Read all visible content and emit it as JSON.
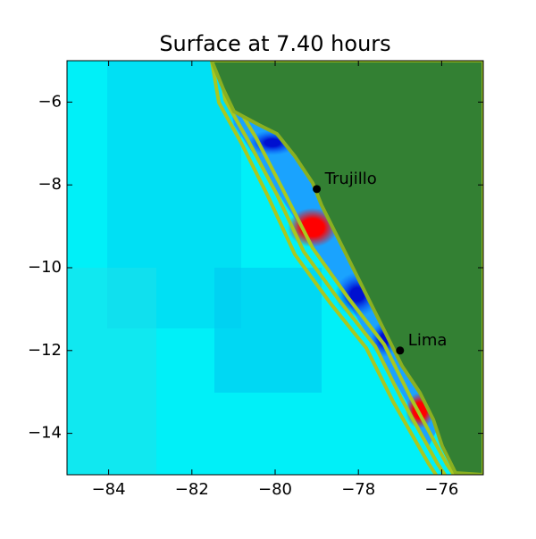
{
  "chart_data": {
    "type": "map",
    "title": "Surface at 7.40 hours",
    "xlim": [
      -85,
      -75
    ],
    "ylim": [
      -15,
      -5
    ],
    "xticks": [
      {
        "value": -84,
        "label": "−84"
      },
      {
        "value": -82,
        "label": "−82"
      },
      {
        "value": -80,
        "label": "−80"
      },
      {
        "value": -78,
        "label": "−78"
      },
      {
        "value": -76,
        "label": "−76"
      }
    ],
    "yticks": [
      {
        "value": -6,
        "label": "−6"
      },
      {
        "value": -8,
        "label": "−8"
      },
      {
        "value": -10,
        "label": "−10"
      },
      {
        "value": -12,
        "label": "−12"
      },
      {
        "value": -14,
        "label": "−14"
      }
    ],
    "points": [
      {
        "name": "Trujillo",
        "x": -79.0,
        "y": -8.1
      },
      {
        "name": "Lima",
        "x": -77.0,
        "y": -12.0
      }
    ],
    "point_color": "#000000"
  }
}
